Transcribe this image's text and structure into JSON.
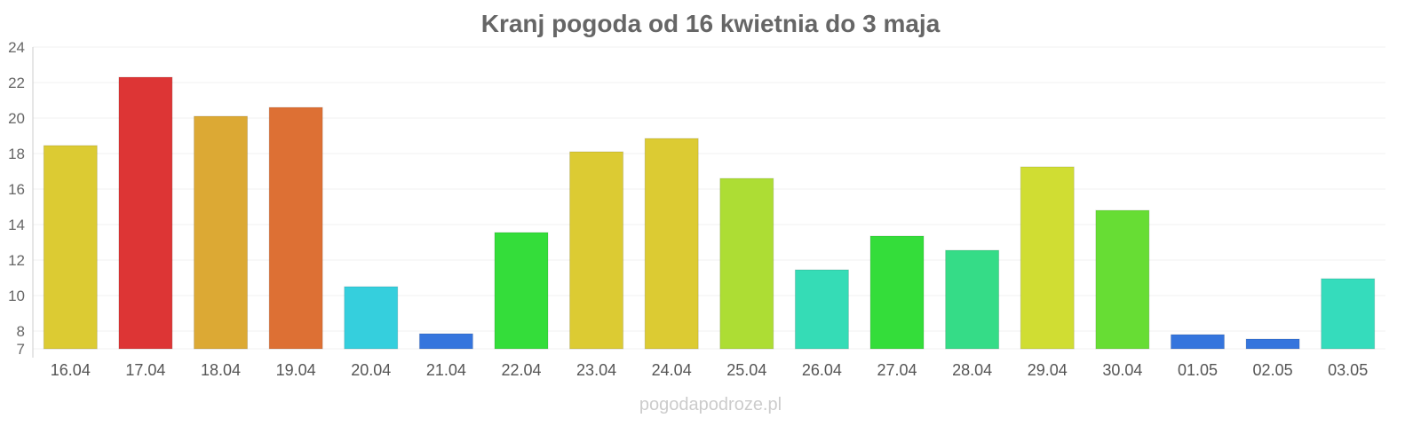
{
  "chart_data": {
    "type": "bar",
    "title": "Kranj pogoda od 16 kwietnia do 3 maja",
    "xlabel": "",
    "ylabel": "",
    "ylim": [
      7,
      24
    ],
    "yticks": [
      7,
      8,
      10,
      12,
      14,
      16,
      18,
      20,
      22,
      24
    ],
    "grid": true,
    "categories": [
      "16.04",
      "17.04",
      "18.04",
      "19.04",
      "20.04",
      "21.04",
      "22.04",
      "23.04",
      "24.04",
      "25.04",
      "26.04",
      "27.04",
      "28.04",
      "29.04",
      "30.04",
      "01.05",
      "02.05",
      "03.05"
    ],
    "values": [
      18.45,
      22.3,
      20.1,
      20.6,
      10.5,
      7.85,
      13.55,
      18.1,
      18.85,
      16.6,
      11.45,
      13.35,
      12.55,
      17.25,
      14.8,
      7.8,
      7.55,
      10.95
    ],
    "colors": [
      "#dccb33",
      "#dd3535",
      "#dca934",
      "#dd7034",
      "#35cfdd",
      "#3575dd",
      "#34dd3a",
      "#dccb33",
      "#dccb33",
      "#addd34",
      "#35dcb6",
      "#34dd3a",
      "#35dc87",
      "#d0dd33",
      "#67dd34",
      "#3575dd",
      "#3575dd",
      "#35dcbc"
    ]
  },
  "footer": "pogodapodroze.pl"
}
